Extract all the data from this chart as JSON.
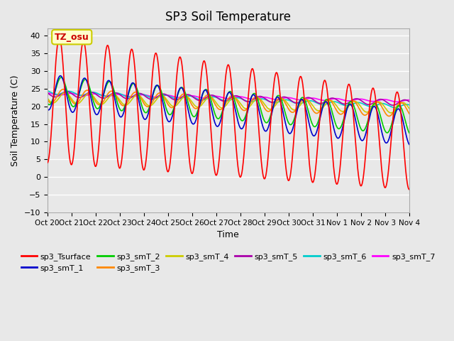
{
  "title": "SP3 Soil Temperature",
  "xlabel": "Time",
  "ylabel": "Soil Temperature (C)",
  "ylim": [
    -10,
    42
  ],
  "yticks": [
    -10,
    -5,
    0,
    5,
    10,
    15,
    20,
    25,
    30,
    35,
    40
  ],
  "xtick_labels": [
    "Oct 20",
    "Oct 21",
    "Oct 22",
    "Oct 23",
    "Oct 24",
    "Oct 25",
    "Oct 26",
    "Oct 27",
    "Oct 28",
    "Oct 29",
    "Oct 30",
    "Oct 31",
    "Nov 1",
    "Nov 2",
    "Nov 3",
    "Nov 4"
  ],
  "annotation_text": "TZ_osu",
  "annotation_color": "#cc0000",
  "annotation_bg": "#ffffcc",
  "annotation_border": "#cccc00",
  "bg_color": "#e8e8e8",
  "plot_bg": "#e8e8e8",
  "grid_color": "#ffffff",
  "series_colors": {
    "sp3_Tsurface": "#ff0000",
    "sp3_smT_1": "#0000cc",
    "sp3_smT_2": "#00cc00",
    "sp3_smT_3": "#ff8800",
    "sp3_smT_4": "#cccc00",
    "sp3_smT_5": "#aa00aa",
    "sp3_smT_6": "#00cccc",
    "sp3_smT_7": "#ff00ff"
  },
  "n_days": 15,
  "hours_per_day": 24,
  "dt": 0.25
}
